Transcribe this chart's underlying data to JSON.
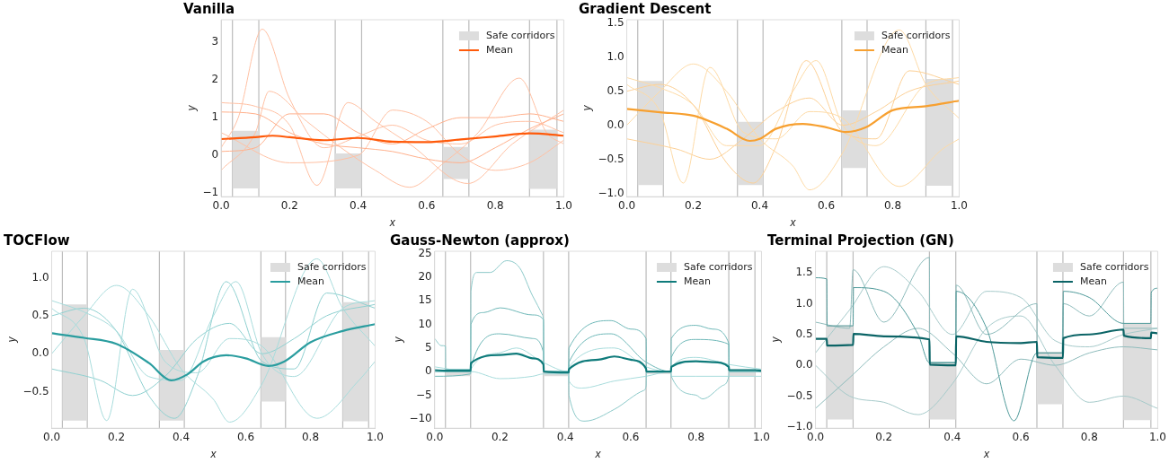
{
  "chart_data": [
    {
      "type": "line",
      "title": "Vanilla",
      "xlabel": "x",
      "ylabel": "y",
      "xlim": [
        0,
        1
      ],
      "xticks": [
        {
          "value": 0,
          "label": "0.0"
        },
        {
          "value": 0.2,
          "label": "0.2"
        },
        {
          "value": 0.4,
          "label": "0.4"
        },
        {
          "value": 0.6,
          "label": "0.6"
        },
        {
          "value": 0.8,
          "label": "0.8"
        },
        {
          "value": 1,
          "label": "1.0"
        }
      ],
      "ylim": [
        -1.1,
        3.6
      ],
      "yticks": [
        {
          "value": -1,
          "label": "−1"
        },
        0,
        1,
        2,
        3
      ],
      "legend": "top right",
      "ref_lines": [
        {
          "axis": "x",
          "value": 0.033,
          "color": "#bbbbbb"
        },
        {
          "axis": "x",
          "value": 0.11,
          "color": "#bbbbbb"
        },
        {
          "axis": "x",
          "value": 0.333,
          "color": "#bbbbbb"
        },
        {
          "axis": "x",
          "value": 0.41,
          "color": "#bbbbbb"
        },
        {
          "axis": "x",
          "value": 0.647,
          "color": "#bbbbbb"
        },
        {
          "axis": "x",
          "value": 0.723,
          "color": "#bbbbbb"
        },
        {
          "axis": "x",
          "value": 0.9,
          "color": "#bbbbbb"
        },
        {
          "axis": "x",
          "value": 0.98,
          "color": "#bbbbbb"
        }
      ],
      "series": [
        {
          "name": "Safe corridors",
          "type": "area",
          "color": "#dddddd",
          "x": [
            0.033,
            0.033,
            0.11,
            0.11,
            0.2,
            0.333,
            0.333,
            0.41,
            0.41,
            0.5,
            0.647,
            0.647,
            0.723,
            0.723,
            0.8,
            0.9,
            0.9,
            0.98,
            0.98
          ],
          "values": [
            -0.88,
            0.65,
            0.65,
            -0.88,
            null,
            -0.88,
            0.05,
            0.05,
            -0.88,
            null,
            -0.63,
            0.22,
            0.22,
            -0.63,
            null,
            -0.89,
            0.68,
            0.68,
            -0.89
          ]
        },
        {
          "color": "#ffc0a3",
          "x": [
            0,
            0.05,
            0.12,
            0.2,
            0.3,
            0.4,
            0.5,
            0.6,
            0.7,
            0.8,
            0.9,
            1
          ],
          "values": [
            0.2,
            1.0,
            3.35,
            1.5,
            0.2,
            0.5,
            0.8,
            0.4,
            0.3,
            0.8,
            0.9,
            0.6
          ]
        },
        {
          "color": "#ffb08c",
          "x": [
            0,
            0.1,
            0.2,
            0.3,
            0.4,
            0.5,
            0.6,
            0.7,
            0.8,
            0.9,
            1
          ],
          "values": [
            1.15,
            1.1,
            0.6,
            0.3,
            0.2,
            0.1,
            -0.1,
            -0.2,
            0.2,
            0.7,
            1.1
          ]
        },
        {
          "color": "#ffc0a3",
          "x": [
            0,
            0.1,
            0.14,
            0.25,
            0.35,
            0.45,
            0.55,
            0.65,
            0.75,
            0.87,
            0.95,
            1
          ],
          "values": [
            -0.4,
            0.6,
            1.7,
            0.9,
            0.2,
            -0.4,
            -0.85,
            -0.2,
            0.6,
            2.05,
            0.6,
            0.3
          ]
        },
        {
          "color": "#ffc0a3",
          "x": [
            0,
            0.1,
            0.2,
            0.28,
            0.37,
            0.45,
            0.55,
            0.72,
            0.85,
            1
          ],
          "values": [
            1.4,
            1.3,
            0.8,
            -0.8,
            1.4,
            0.9,
            0.3,
            -0.75,
            0.3,
            1.2
          ]
        },
        {
          "color": "#ffc0a3",
          "x": [
            0,
            0.2,
            0.4,
            0.5,
            0.6,
            0.7,
            0.8,
            0.9,
            1
          ],
          "values": [
            0.6,
            -0.2,
            0.0,
            1.2,
            0.9,
            0.0,
            -0.4,
            -0.2,
            0.4
          ]
        },
        {
          "color": "#ffb08c",
          "x": [
            0,
            0.1,
            0.2,
            0.3,
            0.4,
            0.5,
            0.6,
            0.7,
            0.8,
            0.9,
            1
          ],
          "values": [
            0.1,
            0.2,
            1.1,
            1.1,
            0.6,
            0.3,
            0.7,
            1.0,
            1.0,
            1.1,
            0.9
          ]
        },
        {
          "name": "Mean",
          "color": "#ff5a0a",
          "x": [
            0,
            0.1,
            0.15,
            0.2,
            0.3,
            0.4,
            0.5,
            0.6,
            0.7,
            0.8,
            0.9,
            1
          ],
          "values": [
            0.43,
            0.48,
            0.52,
            0.48,
            0.4,
            0.46,
            0.36,
            0.35,
            0.42,
            0.5,
            0.58,
            0.52
          ]
        }
      ]
    },
    {
      "type": "line",
      "title": "Gradient Descent",
      "xlabel": "x",
      "ylabel": "y",
      "xlim": [
        0,
        1
      ],
      "xticks": [
        {
          "value": 0,
          "label": "0.0"
        },
        {
          "value": 0.2,
          "label": "0.2"
        },
        {
          "value": 0.4,
          "label": "0.4"
        },
        {
          "value": 0.6,
          "label": "0.6"
        },
        {
          "value": 0.8,
          "label": "0.8"
        },
        {
          "value": 1,
          "label": "1.0"
        }
      ],
      "ylim": [
        -1.05,
        1.55
      ],
      "yticks": [
        {
          "value": -1,
          "label": "−1.0"
        },
        {
          "value": -0.5,
          "label": "−0.5"
        },
        {
          "value": 0,
          "label": "0.0"
        },
        0.5,
        {
          "value": 1,
          "label": "1.0"
        },
        1.5
      ],
      "legend": "top right",
      "ref_lines": [
        {
          "axis": "x",
          "value": 0.033,
          "color": "#bbbbbb"
        },
        {
          "axis": "x",
          "value": 0.11,
          "color": "#bbbbbb"
        },
        {
          "axis": "x",
          "value": 0.333,
          "color": "#bbbbbb"
        },
        {
          "axis": "x",
          "value": 0.41,
          "color": "#bbbbbb"
        },
        {
          "axis": "x",
          "value": 0.647,
          "color": "#bbbbbb"
        },
        {
          "axis": "x",
          "value": 0.723,
          "color": "#bbbbbb"
        },
        {
          "axis": "x",
          "value": 0.9,
          "color": "#bbbbbb"
        },
        {
          "axis": "x",
          "value": 0.98,
          "color": "#bbbbbb"
        }
      ],
      "series": [
        {
          "name": "Safe corridors",
          "type": "area",
          "color": "#dddddd",
          "x": [
            0.033,
            0.033,
            0.11,
            0.11,
            0.2,
            0.333,
            0.333,
            0.41,
            0.41,
            0.5,
            0.647,
            0.647,
            0.723,
            0.723,
            0.8,
            0.9,
            0.9,
            0.98,
            0.98
          ],
          "values": [
            -0.88,
            0.65,
            0.65,
            -0.88,
            null,
            -0.88,
            0.05,
            0.05,
            -0.88,
            null,
            -0.63,
            0.22,
            0.22,
            -0.63,
            null,
            -0.89,
            0.68,
            0.68,
            -0.89
          ]
        },
        {
          "color": "#fddaa6",
          "x": [
            0,
            0.1,
            0.2,
            0.3,
            0.4,
            0.5,
            0.57,
            0.65,
            0.75,
            0.9,
            1
          ],
          "values": [
            0.7,
            0.55,
            0.3,
            -0.3,
            -0.3,
            0.5,
            0.95,
            0.0,
            -0.3,
            0.6,
            0.7
          ]
        },
        {
          "color": "#fddaa6",
          "x": [
            0,
            0.1,
            0.2,
            0.3,
            0.4,
            0.5,
            0.55,
            0.65,
            0.82,
            0.9,
            1
          ],
          "values": [
            0.0,
            0.5,
            0.9,
            0.5,
            -0.2,
            -0.6,
            -0.95,
            -0.4,
            1.4,
            0.6,
            0.1
          ]
        },
        {
          "color": "#fddaa6",
          "x": [
            0,
            0.1,
            0.17,
            0.25,
            0.35,
            0.45,
            0.55,
            0.65,
            0.82,
            0.95,
            1
          ],
          "values": [
            0.6,
            0.2,
            -0.85,
            0.85,
            -0.1,
            -0.2,
            0.2,
            0.1,
            -0.9,
            -0.35,
            -0.2
          ]
        },
        {
          "color": "#fcd096",
          "x": [
            0,
            0.1,
            0.2,
            0.3,
            0.38,
            0.45,
            0.54,
            0.65,
            0.75,
            0.85,
            1
          ],
          "values": [
            0.5,
            0.6,
            0.3,
            -0.55,
            -0.85,
            -0.3,
            0.95,
            -0.1,
            -0.2,
            0.8,
            0.6
          ]
        },
        {
          "color": "#fcd096",
          "x": [
            0,
            0.15,
            0.25,
            0.35,
            0.45,
            0.55,
            0.65,
            0.75,
            0.85,
            1
          ],
          "values": [
            -0.2,
            -0.35,
            -0.5,
            -0.2,
            0.2,
            0.4,
            0.0,
            0.2,
            0.5,
            0.65
          ]
        },
        {
          "name": "Mean",
          "color": "#f7a030",
          "x": [
            0,
            0.1,
            0.2,
            0.3,
            0.37,
            0.4,
            0.45,
            0.53,
            0.6,
            0.66,
            0.72,
            0.8,
            0.9,
            1
          ],
          "values": [
            0.24,
            0.19,
            0.14,
            -0.05,
            -0.23,
            -0.2,
            -0.05,
            0.02,
            -0.03,
            -0.1,
            -0.03,
            0.22,
            0.28,
            0.36
          ]
        }
      ]
    },
    {
      "type": "line",
      "title": "TOCFlow",
      "xlabel": "x",
      "ylabel": "y",
      "xlim": [
        0,
        1
      ],
      "xticks": [
        {
          "value": 0,
          "label": "0.0"
        },
        {
          "value": 0.2,
          "label": "0.2"
        },
        {
          "value": 0.4,
          "label": "0.4"
        },
        {
          "value": 0.6,
          "label": "0.6"
        },
        {
          "value": 0.8,
          "label": "0.8"
        },
        {
          "value": 1,
          "label": "1.0"
        }
      ],
      "ylim": [
        -0.98,
        1.35
      ],
      "yticks": [
        {
          "value": -0.5,
          "label": "−0.5"
        },
        {
          "value": 0,
          "label": "0.0"
        },
        0.5,
        {
          "value": 1,
          "label": "1.0"
        }
      ],
      "legend": "top right",
      "ref_lines": [
        {
          "axis": "x",
          "value": 0.033,
          "color": "#bbbbbb"
        },
        {
          "axis": "x",
          "value": 0.11,
          "color": "#bbbbbb"
        },
        {
          "axis": "x",
          "value": 0.333,
          "color": "#bbbbbb"
        },
        {
          "axis": "x",
          "value": 0.41,
          "color": "#bbbbbb"
        },
        {
          "axis": "x",
          "value": 0.647,
          "color": "#bbbbbb"
        },
        {
          "axis": "x",
          "value": 0.723,
          "color": "#bbbbbb"
        },
        {
          "axis": "x",
          "value": 0.9,
          "color": "#bbbbbb"
        },
        {
          "axis": "x",
          "value": 0.98,
          "color": "#bbbbbb"
        }
      ],
      "series": [
        {
          "name": "Safe corridors",
          "type": "area",
          "color": "#dddddd",
          "x": [
            0.033,
            0.033,
            0.11,
            0.11,
            0.2,
            0.333,
            0.333,
            0.41,
            0.41,
            0.5,
            0.647,
            0.647,
            0.723,
            0.723,
            0.8,
            0.9,
            0.9,
            0.98,
            0.98
          ],
          "values": [
            -0.88,
            0.65,
            0.65,
            -0.88,
            null,
            -0.88,
            0.05,
            0.05,
            -0.88,
            null,
            -0.63,
            0.22,
            0.22,
            -0.63,
            null,
            -0.89,
            0.68,
            0.68,
            -0.89
          ]
        },
        {
          "color": "#a8dcdc",
          "x": [
            0,
            0.1,
            0.2,
            0.3,
            0.4,
            0.5,
            0.57,
            0.65,
            0.75,
            0.9,
            1
          ],
          "values": [
            0.7,
            0.55,
            0.3,
            -0.3,
            -0.35,
            0.5,
            0.95,
            0.0,
            -0.3,
            0.6,
            0.7
          ]
        },
        {
          "color": "#a8dcdc",
          "x": [
            0,
            0.1,
            0.2,
            0.3,
            0.4,
            0.5,
            0.55,
            0.65,
            0.82,
            0.9,
            1
          ],
          "values": [
            0.0,
            0.5,
            0.9,
            0.5,
            -0.2,
            -0.6,
            -0.9,
            -0.4,
            1.25,
            0.6,
            0.1
          ]
        },
        {
          "color": "#a8dcdc",
          "x": [
            0,
            0.1,
            0.17,
            0.25,
            0.35,
            0.45,
            0.55,
            0.65,
            0.82,
            0.95,
            1
          ],
          "values": [
            0.6,
            0.2,
            -0.88,
            0.85,
            -0.1,
            -0.25,
            0.2,
            0.1,
            -0.85,
            -0.35,
            -0.1
          ]
        },
        {
          "color": "#8fd0d0",
          "x": [
            0,
            0.1,
            0.2,
            0.3,
            0.38,
            0.45,
            0.54,
            0.65,
            0.75,
            0.85,
            1
          ],
          "values": [
            0.5,
            0.6,
            0.3,
            -0.55,
            -0.85,
            -0.3,
            0.95,
            -0.1,
            -0.2,
            0.8,
            0.6
          ]
        },
        {
          "color": "#8fd0d0",
          "x": [
            0,
            0.15,
            0.25,
            0.35,
            0.45,
            0.55,
            0.65,
            0.75,
            0.85,
            1
          ],
          "values": [
            -0.2,
            -0.35,
            -0.55,
            -0.3,
            0.2,
            0.4,
            0.0,
            0.2,
            0.5,
            0.65
          ]
        },
        {
          "name": "Mean",
          "color": "#2a9d9f",
          "x": [
            0,
            0.1,
            0.2,
            0.3,
            0.37,
            0.42,
            0.47,
            0.54,
            0.6,
            0.67,
            0.72,
            0.8,
            0.9,
            1
          ],
          "values": [
            0.27,
            0.21,
            0.13,
            -0.12,
            -0.35,
            -0.27,
            -0.1,
            -0.02,
            -0.06,
            -0.16,
            -0.1,
            0.15,
            0.3,
            0.39
          ]
        }
      ]
    },
    {
      "type": "line",
      "title": "Gauss-Newton (approx)",
      "xlabel": "x",
      "ylabel": "y",
      "xlim": [
        0,
        1
      ],
      "xticks": [
        {
          "value": 0,
          "label": "0.0"
        },
        {
          "value": 0.2,
          "label": "0.2"
        },
        {
          "value": 0.4,
          "label": "0.4"
        },
        {
          "value": 0.6,
          "label": "0.6"
        },
        {
          "value": 0.8,
          "label": "0.8"
        },
        {
          "value": 1,
          "label": "1.0"
        }
      ],
      "ylim": [
        -12,
        25.5
      ],
      "yticks": [
        {
          "value": -10,
          "label": "−10"
        },
        {
          "value": -5,
          "label": "−5"
        },
        0,
        5,
        10,
        15,
        20,
        25
      ],
      "legend": "top right",
      "ref_lines": [
        {
          "axis": "x",
          "value": 0.033,
          "color": "#bbbbbb"
        },
        {
          "axis": "x",
          "value": 0.11,
          "color": "#bbbbbb"
        },
        {
          "axis": "x",
          "value": 0.333,
          "color": "#bbbbbb"
        },
        {
          "axis": "x",
          "value": 0.41,
          "color": "#bbbbbb"
        },
        {
          "axis": "x",
          "value": 0.647,
          "color": "#bbbbbb"
        },
        {
          "axis": "x",
          "value": 0.723,
          "color": "#bbbbbb"
        },
        {
          "axis": "x",
          "value": 0.9,
          "color": "#bbbbbb"
        },
        {
          "axis": "x",
          "value": 0.98,
          "color": "#bbbbbb"
        }
      ],
      "series": [
        {
          "name": "Safe corridors",
          "type": "area",
          "color": "#dddddd",
          "x": [
            0.033,
            0.033,
            0.11,
            0.11,
            0.2,
            0.333,
            0.333,
            0.41,
            0.41,
            0.5,
            0.647,
            0.647,
            0.723,
            0.723,
            0.8,
            0.9,
            0.9,
            0.98,
            0.98
          ],
          "values": [
            -1,
            0.5,
            0.5,
            -1,
            null,
            -1,
            0,
            0,
            -1,
            null,
            -0.5,
            0,
            0,
            -0.5,
            null,
            -1,
            0.5,
            0.5,
            -1
          ]
        },
        {
          "color": "#8cc9c9",
          "x": [
            0,
            0.02,
            0.033,
            0.034,
            0.11,
            0.111,
            0.13,
            0.17,
            0.22,
            0.26,
            0.3,
            0.33,
            0.333,
            0.334,
            0.41,
            0.411,
            0.46,
            0.55,
            0.64,
            0.647,
            0.648,
            0.723,
            0.724,
            0.8,
            0.82,
            0.88,
            0.9,
            0.901,
            1
          ],
          "values": [
            7,
            5.5,
            5.4,
            0.5,
            0.5,
            17,
            21,
            21,
            23.5,
            22,
            16,
            12,
            10,
            0,
            0,
            -5,
            -10.5,
            -8,
            -4,
            -3,
            0,
            0,
            -1,
            -5,
            -5.8,
            -3,
            -1,
            0,
            0
          ]
        },
        {
          "color": "#6fb8b8",
          "x": [
            0,
            0.11,
            0.111,
            0.15,
            0.2,
            0.3,
            0.333,
            0.334,
            0.41,
            0.411,
            0.54,
            0.6,
            0.647,
            0.648,
            0.723,
            0.724,
            0.8,
            0.85,
            0.9,
            0.901,
            1
          ],
          "values": [
            0,
            0,
            10,
            12.5,
            13.5,
            12,
            11,
            0,
            0,
            5,
            10.8,
            9,
            7,
            0,
            0,
            7,
            9.8,
            9,
            6,
            0,
            0
          ]
        },
        {
          "color": "#6fb8b8",
          "x": [
            0,
            0.11,
            0.111,
            0.2,
            0.3,
            0.333,
            0.334,
            0.41,
            0.411,
            0.54,
            0.647,
            0.723,
            0.724,
            0.8,
            0.9,
            0.901,
            1
          ],
          "values": [
            -1,
            -0.5,
            1,
            8,
            7,
            4,
            0,
            0,
            2,
            8,
            2,
            0,
            3,
            6.8,
            5.8,
            0,
            0
          ]
        },
        {
          "color": "#a8dcdc",
          "x": [
            0,
            0.11,
            0.111,
            0.2,
            0.3,
            0.333,
            0.41,
            0.411,
            0.45,
            0.55,
            0.647,
            0.723,
            0.724,
            0.8,
            0.9,
            1
          ],
          "values": [
            1,
            0,
            0,
            -1.5,
            -1,
            -0.5,
            -0.5,
            -2,
            -3.5,
            -2,
            -1,
            0,
            -1,
            -1,
            -1,
            -1
          ]
        },
        {
          "color": "#a8dcdc",
          "x": [
            0,
            0.11,
            0.111,
            0.2,
            0.25,
            0.33,
            0.41,
            0.411,
            0.55,
            0.647,
            0.723,
            0.724,
            0.8,
            0.9,
            1
          ],
          "values": [
            0,
            0,
            0.5,
            4,
            5,
            2,
            0,
            1,
            5,
            1,
            0,
            1,
            3,
            1.5,
            0.5
          ]
        },
        {
          "name": "Mean",
          "color": "#0f7b7b",
          "x": [
            0,
            0.033,
            0.11,
            0.111,
            0.2,
            0.25,
            0.3,
            0.333,
            0.334,
            0.41,
            0.411,
            0.5,
            0.55,
            0.6,
            0.647,
            0.648,
            0.723,
            0.724,
            0.8,
            0.85,
            0.9,
            0.901,
            0.98,
            1
          ],
          "values": [
            0.3,
            0.2,
            0.2,
            1.8,
            3.5,
            3.8,
            2.8,
            1.5,
            0,
            -0.2,
            0.5,
            2.5,
            3.2,
            2.5,
            0.6,
            0,
            0,
            1,
            2.2,
            2,
            1,
            0.3,
            0.3,
            0.2
          ]
        }
      ]
    },
    {
      "type": "line",
      "title": "Terminal Projection (GN)",
      "xlabel": "x",
      "ylabel": "y",
      "xlim": [
        0,
        1
      ],
      "xticks": [
        {
          "value": 0,
          "label": "0.0"
        },
        {
          "value": 0.2,
          "label": "0.2"
        },
        {
          "value": 0.4,
          "label": "0.4"
        },
        {
          "value": 0.6,
          "label": "0.6"
        },
        {
          "value": 0.8,
          "label": "0.8"
        },
        {
          "value": 1,
          "label": "1.0"
        }
      ],
      "ylim": [
        -1.02,
        1.85
      ],
      "yticks": [
        {
          "value": -1,
          "label": "−1.0"
        },
        {
          "value": -0.5,
          "label": "−0.5"
        },
        {
          "value": 0,
          "label": "0.0"
        },
        0.5,
        {
          "value": 1,
          "label": "1.0"
        },
        1.5
      ],
      "legend": "top right",
      "ref_lines": [
        {
          "axis": "x",
          "value": 0.033,
          "color": "#bbbbbb"
        },
        {
          "axis": "x",
          "value": 0.11,
          "color": "#bbbbbb"
        },
        {
          "axis": "x",
          "value": 0.333,
          "color": "#bbbbbb"
        },
        {
          "axis": "x",
          "value": 0.41,
          "color": "#bbbbbb"
        },
        {
          "axis": "x",
          "value": 0.647,
          "color": "#bbbbbb"
        },
        {
          "axis": "x",
          "value": 0.723,
          "color": "#bbbbbb"
        },
        {
          "axis": "x",
          "value": 0.9,
          "color": "#bbbbbb"
        },
        {
          "axis": "x",
          "value": 0.98,
          "color": "#bbbbbb"
        }
      ],
      "series": [
        {
          "name": "Safe corridors",
          "type": "area",
          "color": "#dddddd",
          "x": [
            0.033,
            0.033,
            0.11,
            0.11,
            0.2,
            0.333,
            0.333,
            0.41,
            0.41,
            0.5,
            0.647,
            0.647,
            0.723,
            0.723,
            0.8,
            0.9,
            0.9,
            0.98,
            0.98
          ],
          "values": [
            -0.88,
            0.65,
            0.65,
            -0.88,
            null,
            -0.88,
            0.05,
            0.05,
            -0.88,
            null,
            -0.63,
            0.22,
            0.22,
            -0.63,
            null,
            -0.89,
            0.68,
            0.68,
            -0.89
          ]
        },
        {
          "color": "#4f9a9a",
          "x": [
            0,
            0.033,
            0.034,
            0.11,
            0.111,
            0.2,
            0.3,
            0.333,
            0.41,
            0.411,
            0.5,
            0.58,
            0.647,
            0.723,
            0.724,
            0.8,
            0.9,
            0.98,
            0.981,
            1
          ],
          "values": [
            1.42,
            1.4,
            0.64,
            0.64,
            1.26,
            1.2,
            0.5,
            0.04,
            0.04,
            1.2,
            0.6,
            -0.9,
            0.2,
            0.2,
            1.2,
            1.1,
            0.68,
            0.68,
            1.18,
            1.25
          ]
        },
        {
          "color": "#8fbcbc",
          "x": [
            0,
            0.1,
            0.11,
            0.2,
            0.333,
            0.334,
            0.41,
            0.411,
            0.5,
            0.647,
            0.648,
            0.72,
            0.724,
            0.8,
            0.9,
            0.901,
            1
          ],
          "values": [
            0.7,
            0.6,
            1.55,
            0.7,
            1.75,
            0.05,
            0.05,
            1.3,
            0.5,
            1.0,
            0.2,
            0.2,
            1.0,
            0.8,
            1.35,
            0.6,
            0.6
          ]
        },
        {
          "color": "#a6caca",
          "x": [
            0,
            0.1,
            0.2,
            0.3,
            0.4,
            0.5,
            0.6,
            0.7,
            0.8,
            0.9,
            1
          ],
          "values": [
            0.0,
            -0.5,
            -0.6,
            -0.8,
            -0.3,
            0.6,
            0.8,
            0.0,
            -0.6,
            -0.5,
            -0.7
          ]
        },
        {
          "color": "#a6caca",
          "x": [
            0,
            0.1,
            0.2,
            0.3,
            0.4,
            0.5,
            0.6,
            0.7,
            0.8,
            0.9,
            1
          ],
          "values": [
            0.2,
            0.9,
            1.6,
            1.2,
            0.5,
            1.2,
            1.1,
            0.4,
            0.3,
            0.5,
            0.6
          ]
        },
        {
          "color": "#8fbcbc",
          "x": [
            0,
            0.1,
            0.2,
            0.3,
            0.4,
            0.5,
            0.6,
            0.7,
            0.8,
            0.9,
            1
          ],
          "values": [
            -0.7,
            -0.2,
            0.3,
            0.6,
            0.2,
            -0.3,
            0.1,
            0.0,
            0.2,
            0.3,
            0.25
          ]
        },
        {
          "name": "Mean",
          "color": "#0b6466",
          "x": [
            0,
            0.033,
            0.034,
            0.11,
            0.111,
            0.2,
            0.333,
            0.334,
            0.41,
            0.411,
            0.5,
            0.6,
            0.647,
            0.648,
            0.723,
            0.724,
            0.8,
            0.9,
            0.901,
            0.98,
            0.981,
            1
          ],
          "values": [
            0.43,
            0.43,
            0.32,
            0.33,
            0.51,
            0.47,
            0.42,
            0.01,
            0.0,
            0.47,
            0.38,
            0.36,
            0.38,
            0.13,
            0.12,
            0.44,
            0.5,
            0.58,
            0.48,
            0.44,
            0.53,
            0.52
          ]
        }
      ]
    }
  ]
}
